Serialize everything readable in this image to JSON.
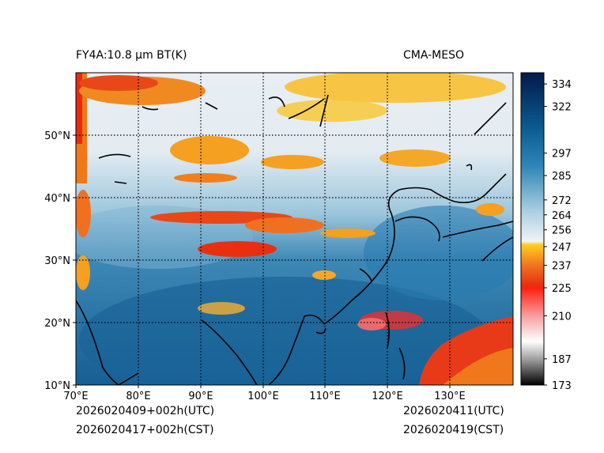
{
  "header": {
    "product": "FY4A:10.8 µm BT(K)",
    "model": "CMA-MESO"
  },
  "footer": {
    "init_utc": "2026020409+002h(UTC)",
    "init_cst": "2026020417+002h(CST)",
    "valid_utc": "2026020411(UTC)",
    "valid_cst": "2026020419(CST)"
  },
  "map": {
    "lon_range": [
      70,
      140
    ],
    "lat_range": [
      10,
      60
    ],
    "lon_ticks": [
      "70°E",
      "80°E",
      "90°E",
      "100°E",
      "110°E",
      "120°E",
      "130°E"
    ],
    "lat_ticks": [
      "10°N",
      "20°N",
      "30°N",
      "40°N",
      "50°N"
    ]
  },
  "colorbar": {
    "min": 173,
    "max": 340,
    "tick_labels": [
      "334",
      "322",
      "297",
      "285",
      "272",
      "264",
      "256",
      "247",
      "237",
      "225",
      "210",
      "187",
      "173"
    ],
    "tick_values": [
      334,
      322,
      297,
      285,
      272,
      264,
      256,
      247,
      237,
      225,
      210,
      187,
      173
    ]
  },
  "colors": {
    "warm_blue": "#1f6aa5",
    "cold_orange": "#f5a020",
    "cold_red": "#e82a10",
    "pale": "#dde8ef"
  }
}
